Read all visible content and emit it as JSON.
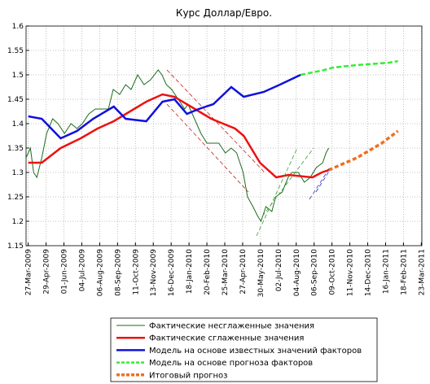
{
  "chart_data": {
    "type": "line",
    "title": "Курс Доллар/Евро.",
    "xlim": [
      "2009-03-23",
      "2011-03-24"
    ],
    "xticks": [
      {
        "value": "2009-03-27",
        "label": "27-Mar-2009"
      },
      {
        "value": "2009-04-29",
        "label": "29-Apr-2009"
      },
      {
        "value": "2009-06-01",
        "label": "01-Jun-2009"
      },
      {
        "value": "2009-07-04",
        "label": "04-Jul-2009"
      },
      {
        "value": "2009-08-06",
        "label": "06-Aug-2009"
      },
      {
        "value": "2009-09-08",
        "label": "08-Sep-2009"
      },
      {
        "value": "2009-10-11",
        "label": "11-Oct-2009"
      },
      {
        "value": "2009-11-13",
        "label": "13-Nov-2009"
      },
      {
        "value": "2009-12-16",
        "label": "16-Dec-2009"
      },
      {
        "value": "2010-01-18",
        "label": "18-Jan-2010"
      },
      {
        "value": "2010-02-20",
        "label": "20-Feb-2010"
      },
      {
        "value": "2010-03-25",
        "label": "25-Mar-2010"
      },
      {
        "value": "2010-04-27",
        "label": "27-Apr-2010"
      },
      {
        "value": "2010-05-30",
        "label": "30-May-2010"
      },
      {
        "value": "2010-07-02",
        "label": "02-Jul-2010"
      },
      {
        "value": "2010-08-04",
        "label": "04-Aug-2010"
      },
      {
        "value": "2010-09-06",
        "label": "06-Sep-2010"
      },
      {
        "value": "2010-10-09",
        "label": "09-Oct-2010"
      },
      {
        "value": "2010-11-11",
        "label": "11-Nov-2010"
      },
      {
        "value": "2010-12-14",
        "label": "14-Dec-2010"
      },
      {
        "value": "2011-01-16",
        "label": "16-Jan-2011"
      },
      {
        "value": "2011-02-18",
        "label": "18-Feb-2011"
      },
      {
        "value": "2011-03-23",
        "label": "23-Mar-2011"
      }
    ],
    "ylim": [
      1.15,
      1.6
    ],
    "yticks": [
      1.15,
      1.2,
      1.25,
      1.3,
      1.35,
      1.4,
      1.45,
      1.5,
      1.55,
      1.6
    ],
    "grid": true,
    "series": [
      {
        "name": "Фактические несглаженные значения",
        "color": "#1e6b1e",
        "dashed": false,
        "x": [
          "2009-03-23",
          "2009-03-31",
          "2009-04-06",
          "2009-04-12",
          "2009-04-21",
          "2009-04-30",
          "2009-05-11",
          "2009-05-21",
          "2009-06-02",
          "2009-06-14",
          "2009-06-25",
          "2009-07-05",
          "2009-07-17",
          "2009-07-29",
          "2009-08-10",
          "2009-08-22",
          "2009-08-31",
          "2009-09-12",
          "2009-09-23",
          "2009-10-03",
          "2009-10-15",
          "2009-10-27",
          "2009-11-08",
          "2009-11-22",
          "2009-11-29",
          "2009-12-07",
          "2009-12-17",
          "2009-12-29",
          "2010-01-10",
          "2010-01-16",
          "2010-01-28",
          "2010-02-09",
          "2010-02-20",
          "2010-03-02",
          "2010-03-14",
          "2010-03-26",
          "2010-04-06",
          "2010-04-16",
          "2010-04-28",
          "2010-05-06",
          "2010-05-16",
          "2010-05-25",
          "2010-05-31",
          "2010-06-09",
          "2010-06-20",
          "2010-06-27",
          "2010-07-09",
          "2010-07-20",
          "2010-07-27",
          "2010-08-08",
          "2010-08-19",
          "2010-08-30",
          "2010-09-10",
          "2010-09-22",
          "2010-09-28",
          "2010-10-03"
        ],
        "values": [
          1.33,
          1.35,
          1.3,
          1.29,
          1.33,
          1.38,
          1.41,
          1.4,
          1.38,
          1.4,
          1.39,
          1.4,
          1.42,
          1.43,
          1.43,
          1.43,
          1.47,
          1.46,
          1.48,
          1.47,
          1.5,
          1.48,
          1.49,
          1.51,
          1.5,
          1.48,
          1.47,
          1.45,
          1.43,
          1.44,
          1.41,
          1.38,
          1.36,
          1.36,
          1.36,
          1.34,
          1.35,
          1.34,
          1.3,
          1.25,
          1.23,
          1.21,
          1.2,
          1.23,
          1.22,
          1.25,
          1.26,
          1.29,
          1.3,
          1.3,
          1.28,
          1.29,
          1.31,
          1.32,
          1.34,
          1.35
        ]
      },
      {
        "name": "Фактические сглаженные значения",
        "color": "#ee1111",
        "dashed": false,
        "x": [
          "2009-03-27",
          "2009-04-21",
          "2009-05-26",
          "2009-07-02",
          "2009-08-02",
          "2009-09-01",
          "2009-10-01",
          "2009-10-31",
          "2009-11-30",
          "2009-12-22",
          "2010-01-29",
          "2010-02-28",
          "2010-04-13",
          "2010-04-29",
          "2010-05-29",
          "2010-06-28",
          "2010-07-21",
          "2010-09-03",
          "2010-09-20",
          "2010-10-03"
        ],
        "values": [
          1.32,
          1.32,
          1.35,
          1.37,
          1.39,
          1.405,
          1.425,
          1.445,
          1.46,
          1.455,
          1.43,
          1.41,
          1.39,
          1.375,
          1.32,
          1.29,
          1.295,
          1.29,
          1.3,
          1.305
        ]
      },
      {
        "name": "Модель на основе известных значений факторов",
        "color": "#1010dd",
        "dashed": false,
        "x": [
          "2009-03-27",
          "2009-04-21",
          "2009-05-26",
          "2009-06-25",
          "2009-07-25",
          "2009-09-01",
          "2009-09-23",
          "2009-10-31",
          "2009-11-30",
          "2009-12-22",
          "2010-01-14",
          "2010-02-05",
          "2010-03-04",
          "2010-04-06",
          "2010-04-29",
          "2010-06-05",
          "2010-07-05",
          "2010-08-12"
        ],
        "values": [
          1.415,
          1.41,
          1.37,
          1.385,
          1.41,
          1.435,
          1.41,
          1.405,
          1.445,
          1.45,
          1.42,
          1.43,
          1.44,
          1.475,
          1.455,
          1.465,
          1.48,
          1.5
        ]
      },
      {
        "name": "Модель на основе прогноза факторов",
        "color": "#33ee33",
        "dashed": true,
        "x": [
          "2010-08-12",
          "2010-09-25",
          "2010-10-11",
          "2010-11-24",
          "2011-01-23",
          "2011-02-08"
        ],
        "values": [
          1.5,
          1.51,
          1.515,
          1.52,
          1.525,
          1.528
        ]
      },
      {
        "name": "Итоговый прогноз",
        "color": "#f07020",
        "dashed": true,
        "x": [
          "2010-10-03",
          "2010-11-24",
          "2011-01-09",
          "2011-02-08"
        ],
        "values": [
          1.305,
          1.33,
          1.36,
          1.385
        ]
      }
    ]
  }
}
